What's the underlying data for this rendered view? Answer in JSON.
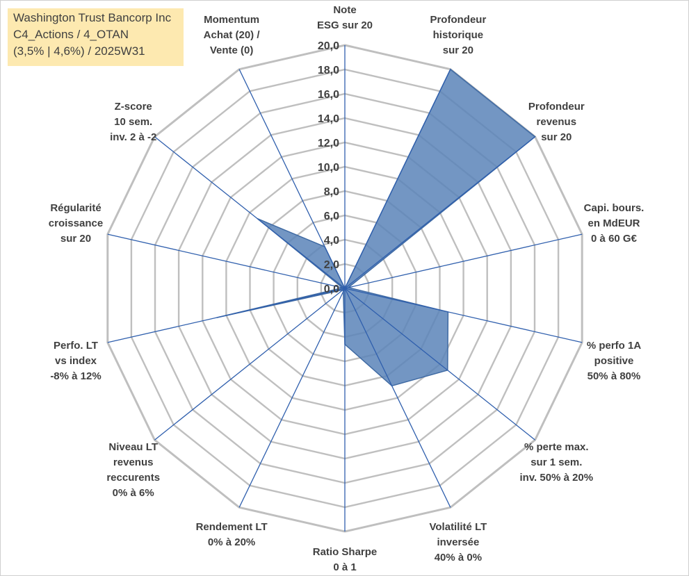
{
  "title_box": {
    "line1": "Washington Trust Bancorp Inc",
    "line2": "C4_Actions / 4_OTAN",
    "line3": "(3,5% | 4,6%) / 2025W31"
  },
  "chart_data": {
    "type": "radar",
    "title": "",
    "rmin": 0,
    "rmax": 20,
    "step": 2,
    "tick_labels": [
      "0,0",
      "2,0",
      "4,0",
      "6,0",
      "8,0",
      "10,0",
      "12,0",
      "14,0",
      "16,0",
      "18,0",
      "20,0"
    ],
    "grid": true,
    "colors": {
      "fill": "#5b84b8",
      "stroke": "#3f6aa3",
      "grid": "#bfbfbf",
      "spoke": "#2f5fad"
    },
    "axes": [
      {
        "label": [
          "Note",
          "ESG sur 20"
        ]
      },
      {
        "label": [
          "Profondeur",
          "historique",
          "sur 20"
        ]
      },
      {
        "label": [
          "Profondeur",
          "revenus",
          "sur 20"
        ]
      },
      {
        "label": [
          "Capi. bours.",
          "en MdEUR",
          "0 à 60 G€"
        ]
      },
      {
        "label": [
          "% perfo 1A",
          "positive",
          "50% à 80%"
        ]
      },
      {
        "label": [
          "% perte max.",
          "sur 1 sem.",
          "inv. 50% à 20%"
        ]
      },
      {
        "label": [
          "Volatilité LT",
          "inversée",
          "40% à 0%"
        ]
      },
      {
        "label": [
          "Ratio Sharpe",
          "0 à 1"
        ]
      },
      {
        "label": [
          "Rendement LT",
          "0% à 20%"
        ]
      },
      {
        "label": [
          "Niveau LT",
          "revenus",
          "reccurents",
          "0% à 6%"
        ]
      },
      {
        "label": [
          "Perfo. LT",
          "vs index",
          "-8% à 12%"
        ]
      },
      {
        "label": [
          "Régularité",
          "croissance",
          "sur 20"
        ]
      },
      {
        "label": [
          "Z-score",
          "10 sem.",
          "inv. 2 à -2"
        ]
      },
      {
        "label": [
          "Momentum",
          "Achat (20) /",
          "Vente (0)"
        ]
      }
    ],
    "series": [
      {
        "values": [
          0,
          20,
          20,
          0.3,
          8.7,
          10.8,
          8.9,
          4.6,
          0.3,
          0.2,
          10.8,
          0.2,
          9.2,
          3.8
        ]
      }
    ]
  }
}
